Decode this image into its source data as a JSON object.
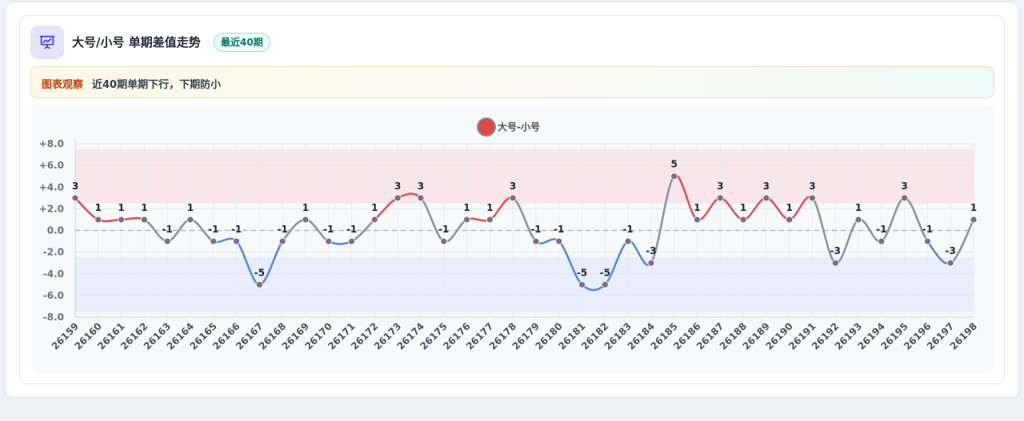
{
  "header": {
    "title": "大号/小号 单期差值走势",
    "badge": "最近40期"
  },
  "notice": {
    "tag": "图表观察",
    "text": "近40期单期下行，下期防小"
  },
  "colors": {
    "up": "#dc5656",
    "down": "#5b8bd9",
    "neutral": "#8b95a3",
    "legend_dot": "#e04848",
    "band_high": "#f9e3e6",
    "band_low": "#e5ecfa"
  },
  "chart_data": {
    "type": "line",
    "title": "",
    "xlabel": "",
    "ylabel": "",
    "legend": "top-center",
    "series": [
      {
        "name": "大号-小号",
        "values": [
          3,
          1,
          1,
          1,
          -1,
          1,
          -1,
          -1,
          -5,
          -1,
          1,
          -1,
          -1,
          1,
          3,
          3,
          -1,
          1,
          1,
          3,
          -1,
          -1,
          -5,
          -5,
          -1,
          -3,
          5,
          1,
          3,
          1,
          3,
          1,
          3,
          -3,
          1,
          -1,
          3,
          -1,
          -3,
          1
        ]
      }
    ],
    "categories": [
      "26159",
      "26160",
      "26161",
      "26162",
      "26163",
      "26164",
      "26165",
      "26166",
      "26167",
      "26168",
      "26169",
      "26170",
      "26171",
      "26172",
      "26173",
      "26174",
      "26175",
      "26176",
      "26177",
      "26178",
      "26179",
      "26180",
      "26181",
      "26182",
      "26183",
      "26184",
      "26185",
      "26186",
      "26187",
      "26188",
      "26189",
      "26190",
      "26191",
      "26192",
      "26193",
      "26194",
      "26195",
      "26196",
      "26197",
      "26198"
    ],
    "y_ticks": [
      "+8.0",
      "+6.0",
      "+4.0",
      "+2.0",
      "0.0",
      "-2.0",
      "-4.0",
      "-6.0",
      "-8.0"
    ],
    "ylim": [
      -8,
      8
    ],
    "bands": [
      {
        "from": 2.5,
        "to": 7.5,
        "color": "#f9e3e6"
      },
      {
        "from": -7.5,
        "to": -2.5,
        "color": "#e5ecfa"
      }
    ],
    "zero_line": "dashed",
    "grid": true
  }
}
